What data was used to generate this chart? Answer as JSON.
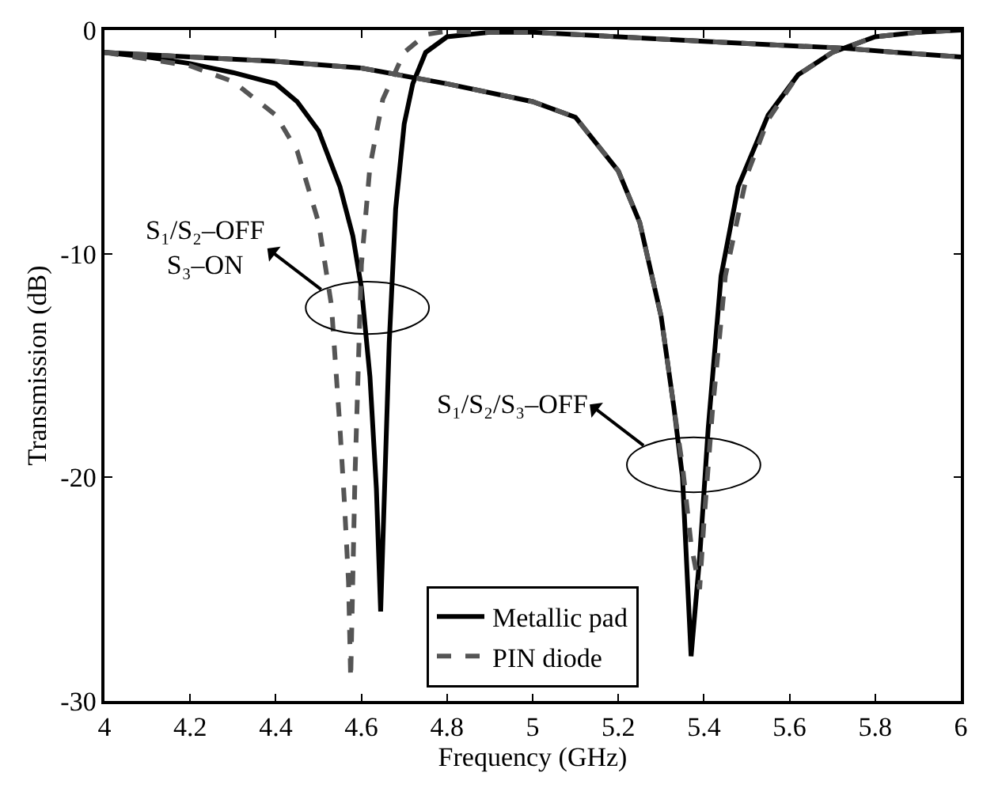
{
  "chart_data": {
    "type": "line",
    "xlabel": "Frequency (GHz)",
    "ylabel": "Transmission (dB)",
    "xlim": [
      4,
      6
    ],
    "ylim": [
      -30,
      0
    ],
    "xticks": [
      4,
      4.2,
      4.4,
      4.6,
      4.8,
      5,
      5.2,
      5.4,
      5.6,
      5.8,
      6
    ],
    "yticks": [
      -30,
      -20,
      -10,
      0
    ],
    "legend": "bottom",
    "marker": "none",
    "series": [
      {
        "name": "Metallic pad",
        "color": "#000000",
        "line_style": "solid",
        "x": [
          4.0,
          4.1,
          4.2,
          4.3,
          4.4,
          4.45,
          4.5,
          4.55,
          4.58,
          4.6,
          4.62,
          4.635,
          4.645,
          4.655,
          4.665,
          4.68,
          4.7,
          4.72,
          4.75,
          4.8,
          4.9,
          5.0,
          5.2,
          5.4,
          5.6,
          5.72,
          5.85,
          6.0
        ],
        "values": [
          -1.0,
          -1.2,
          -1.5,
          -1.9,
          -2.4,
          -3.2,
          -4.5,
          -7.0,
          -9.2,
          -11.5,
          -15.5,
          -20.5,
          -26.0,
          -20.0,
          -14.0,
          -8.0,
          -4.2,
          -2.4,
          -1.0,
          -0.3,
          -0.1,
          -0.1,
          -0.3,
          -0.5,
          -0.7,
          -0.8,
          -1.0,
          -1.2
        ]
      },
      {
        "name": null,
        "color": "#000000",
        "line_style": "solid",
        "x": [
          4.0,
          4.2,
          4.4,
          4.6,
          4.8,
          5.0,
          5.1,
          5.2,
          5.25,
          5.3,
          5.33,
          5.35,
          5.37,
          5.39,
          5.41,
          5.44,
          5.48,
          5.55,
          5.62,
          5.7,
          5.8,
          5.9,
          6.0
        ],
        "values": [
          -1.0,
          -1.2,
          -1.4,
          -1.7,
          -2.4,
          -3.2,
          -3.9,
          -6.3,
          -8.6,
          -12.8,
          -16.9,
          -20.0,
          -28.0,
          -23.6,
          -17.8,
          -11.0,
          -7.0,
          -3.8,
          -2.0,
          -1.0,
          -0.3,
          -0.1,
          0.0
        ]
      },
      {
        "name": "PIN diode",
        "color": "#555555",
        "line_style": "dashed",
        "x": [
          4.0,
          4.1,
          4.2,
          4.3,
          4.4,
          4.45,
          4.5,
          4.53,
          4.55,
          4.56,
          4.57,
          4.575,
          4.585,
          4.6,
          4.62,
          4.65,
          4.7,
          4.75,
          4.8,
          4.9,
          5.0,
          5.2,
          5.4,
          5.6,
          5.72,
          5.85,
          6.0
        ],
        "values": [
          -1.0,
          -1.3,
          -1.6,
          -2.3,
          -3.8,
          -5.4,
          -8.6,
          -12.3,
          -17.8,
          -21.0,
          -24.7,
          -29.0,
          -20.0,
          -10.5,
          -6.1,
          -3.1,
          -1.0,
          -0.2,
          -0.05,
          -0.1,
          -0.1,
          -0.3,
          -0.5,
          -0.7,
          -0.8,
          -1.0,
          -1.2
        ]
      },
      {
        "name": null,
        "color": "#555555",
        "line_style": "dashed",
        "x": [
          4.0,
          4.2,
          4.4,
          4.6,
          4.8,
          5.0,
          5.1,
          5.2,
          5.25,
          5.3,
          5.33,
          5.35,
          5.37,
          5.39,
          5.4,
          5.42,
          5.45,
          5.5,
          5.55,
          5.62,
          5.7,
          5.8,
          5.9,
          6.0
        ],
        "values": [
          -1.0,
          -1.2,
          -1.4,
          -1.7,
          -2.4,
          -3.2,
          -3.9,
          -6.3,
          -8.6,
          -12.8,
          -16.9,
          -19.5,
          -23.0,
          -25.0,
          -22.0,
          -17.0,
          -11.0,
          -6.5,
          -4.0,
          -2.0,
          -1.0,
          -0.3,
          -0.1,
          0.0
        ]
      }
    ],
    "annotations": [
      "S₁/S₂–OFF\nS₃–ON",
      "S₁/S₂/S₃–OFF"
    ]
  }
}
